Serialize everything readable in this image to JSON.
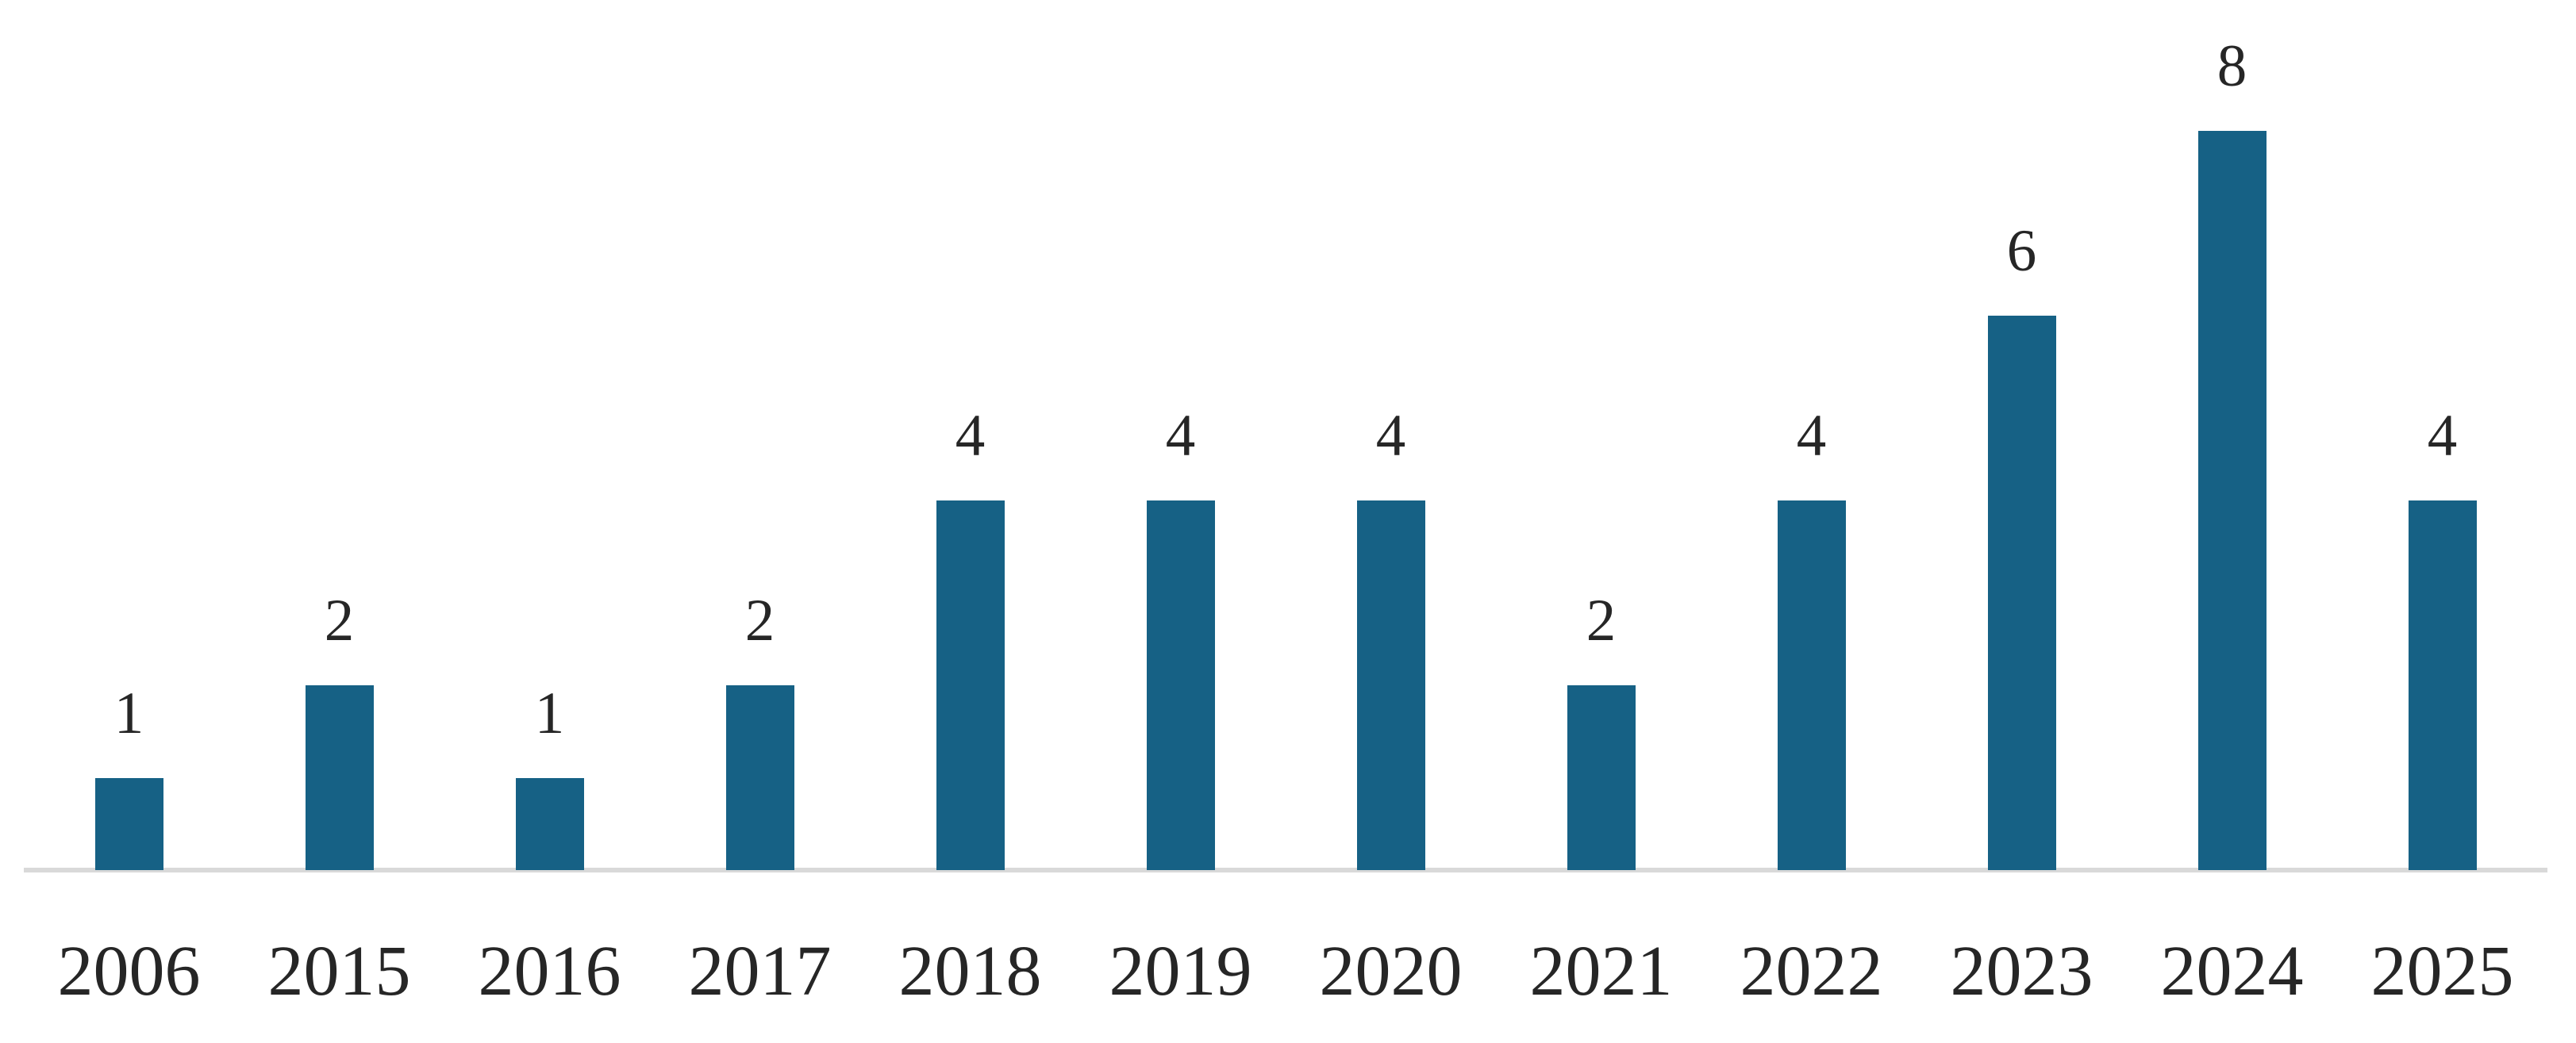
{
  "chart_data": {
    "type": "bar",
    "categories": [
      "2006",
      "2015",
      "2016",
      "2017",
      "2018",
      "2019",
      "2020",
      "2021",
      "2022",
      "2023",
      "2024",
      "2025"
    ],
    "values": [
      1,
      2,
      1,
      2,
      4,
      4,
      4,
      2,
      4,
      6,
      8,
      4
    ],
    "data_labels": [
      "1",
      "2",
      "1",
      "2",
      "4",
      "4",
      "4",
      "2",
      "4",
      "6",
      "8",
      "4"
    ],
    "title": "",
    "xlabel": "",
    "ylabel": "",
    "ylim": [
      0,
      8
    ],
    "grid": "off",
    "legend": "none",
    "y_axis_visible": false,
    "data_label_position": "outside-end",
    "colors": {
      "bar_fill": "#166185",
      "axis_line": "#d9d9d9",
      "label_text": "#262626"
    }
  }
}
